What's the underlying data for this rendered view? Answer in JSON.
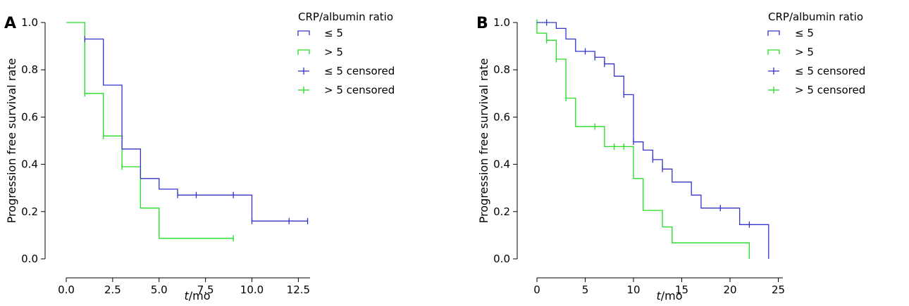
{
  "figure": {
    "panels": [
      {
        "letter": "A",
        "legend_title": "CRP/albumin ratio",
        "legend_labels": [
          "≤ 5",
          "> 5",
          "≤ 5 censored",
          "> 5 censored"
        ],
        "ylabel": "Progression free survival rate",
        "xlabel_italic": "t",
        "xlabel_rest": "/mo",
        "x_ticks": [
          "0.0",
          "2.5",
          "5.0",
          "7.5",
          "10.0",
          "12.5"
        ],
        "y_ticks": [
          "0.0",
          "0.2",
          "0.4",
          "0.6",
          "0.8",
          "1.0"
        ]
      },
      {
        "letter": "B",
        "legend_title": "CRP/albumin ratio",
        "legend_labels": [
          "≤ 5",
          "> 5",
          "≤ 5 censored",
          "> 5 censored"
        ],
        "ylabel": "Progression free survival rate",
        "xlabel_italic": "t",
        "xlabel_rest": "/mo",
        "x_ticks": [
          "0",
          "5",
          "10",
          "15",
          "20",
          "25"
        ],
        "y_ticks": [
          "0.0",
          "0.2",
          "0.4",
          "0.6",
          "0.8",
          "1.0"
        ]
      }
    ]
  },
  "chart_data": [
    {
      "type": "line",
      "subtype": "kaplan-meier step",
      "panel": "A",
      "legend_title": "CRP/albumin ratio",
      "xlabel": "t/mo",
      "ylabel": "Progression free survival rate",
      "xlim": [
        -0.5,
        14
      ],
      "ylim": [
        -0.03,
        1.03
      ],
      "x_ticks": [
        0,
        2.5,
        5,
        7.5,
        10,
        12.5
      ],
      "y_ticks": [
        0,
        0.2,
        0.4,
        0.6,
        0.8,
        1.0
      ],
      "legend_position": "top-right",
      "series": [
        {
          "name": "≤ 5",
          "color": "#3333cc",
          "steps": [
            [
              1,
              0.93
            ],
            [
              2,
              0.93
            ],
            [
              2,
              0.735
            ],
            [
              3,
              0.735
            ],
            [
              3,
              0.465
            ],
            [
              4,
              0.465
            ],
            [
              4,
              0.34
            ],
            [
              5,
              0.34
            ],
            [
              5,
              0.295
            ],
            [
              6,
              0.295
            ],
            [
              6,
              0.27
            ],
            [
              10,
              0.27
            ],
            [
              10,
              0.16
            ],
            [
              13,
              0.16
            ]
          ],
          "censored": [
            [
              1,
              0.93
            ],
            [
              6,
              0.27
            ],
            [
              7,
              0.27
            ],
            [
              9,
              0.27
            ],
            [
              10,
              0.16
            ],
            [
              12,
              0.16
            ],
            [
              13,
              0.16
            ]
          ]
        },
        {
          "name": "> 5",
          "color": "#22dd22",
          "steps": [
            [
              0,
              1.0
            ],
            [
              1,
              1.0
            ],
            [
              1,
              0.7
            ],
            [
              2,
              0.7
            ],
            [
              2,
              0.52
            ],
            [
              3,
              0.52
            ],
            [
              3,
              0.39
            ],
            [
              4,
              0.39
            ],
            [
              4,
              0.215
            ],
            [
              5,
              0.215
            ],
            [
              5,
              0.087
            ],
            [
              9,
              0.087
            ]
          ],
          "censored": [
            [
              1,
              0.7
            ],
            [
              2,
              0.52
            ],
            [
              3,
              0.39
            ],
            [
              9,
              0.087
            ]
          ]
        }
      ]
    },
    {
      "type": "line",
      "subtype": "kaplan-meier step",
      "panel": "B",
      "legend_title": "CRP/albumin ratio",
      "xlabel": "t/mo",
      "ylabel": "Progression free survival rate",
      "xlim": [
        -1.5,
        28
      ],
      "ylim": [
        -0.03,
        1.03
      ],
      "x_ticks": [
        0,
        5,
        10,
        15,
        20,
        25
      ],
      "y_ticks": [
        0,
        0.2,
        0.4,
        0.6,
        0.8,
        1.0
      ],
      "legend_position": "top-right",
      "series": [
        {
          "name": "≤ 5",
          "color": "#3333cc",
          "steps": [
            [
              0,
              1.0
            ],
            [
              2,
              1.0
            ],
            [
              2,
              0.975
            ],
            [
              3,
              0.975
            ],
            [
              3,
              0.93
            ],
            [
              4,
              0.93
            ],
            [
              4,
              0.878
            ],
            [
              6,
              0.878
            ],
            [
              6,
              0.853
            ],
            [
              7,
              0.853
            ],
            [
              7,
              0.825
            ],
            [
              8,
              0.825
            ],
            [
              8,
              0.773
            ],
            [
              9,
              0.773
            ],
            [
              9,
              0.695
            ],
            [
              10,
              0.695
            ],
            [
              10,
              0.495
            ],
            [
              11,
              0.495
            ],
            [
              11,
              0.46
            ],
            [
              12,
              0.46
            ],
            [
              12,
              0.42
            ],
            [
              13,
              0.42
            ],
            [
              13,
              0.38
            ],
            [
              14,
              0.38
            ],
            [
              14,
              0.325
            ],
            [
              16,
              0.325
            ],
            [
              16,
              0.27
            ],
            [
              17,
              0.27
            ],
            [
              17,
              0.215
            ],
            [
              21,
              0.215
            ],
            [
              21,
              0.145
            ],
            [
              24,
              0.145
            ],
            [
              24,
              0.0
            ]
          ],
          "censored": [
            [
              1,
              1.0
            ],
            [
              5,
              0.878
            ],
            [
              6,
              0.853
            ],
            [
              7,
              0.825
            ],
            [
              9,
              0.695
            ],
            [
              10,
              0.495
            ],
            [
              12,
              0.42
            ],
            [
              13,
              0.38
            ],
            [
              19,
              0.215
            ],
            [
              22,
              0.145
            ]
          ]
        },
        {
          "name": "> 5",
          "color": "#22dd22",
          "steps": [
            [
              0,
              1.0
            ],
            [
              0,
              0.955
            ],
            [
              1,
              0.955
            ],
            [
              1,
              0.925
            ],
            [
              2,
              0.925
            ],
            [
              2,
              0.845
            ],
            [
              3,
              0.845
            ],
            [
              3,
              0.68
            ],
            [
              4,
              0.68
            ],
            [
              4,
              0.56
            ],
            [
              7,
              0.56
            ],
            [
              7,
              0.475
            ],
            [
              10,
              0.475
            ],
            [
              10,
              0.34
            ],
            [
              11,
              0.34
            ],
            [
              11,
              0.205
            ],
            [
              13,
              0.205
            ],
            [
              13,
              0.135
            ],
            [
              14,
              0.135
            ],
            [
              14,
              0.068
            ],
            [
              22,
              0.068
            ],
            [
              22,
              0.0
            ]
          ],
          "censored": [
            [
              0,
              1.0
            ],
            [
              1,
              0.925
            ],
            [
              2,
              0.845
            ],
            [
              3,
              0.68
            ],
            [
              6,
              0.56
            ],
            [
              8,
              0.475
            ],
            [
              9,
              0.475
            ]
          ]
        }
      ]
    }
  ]
}
